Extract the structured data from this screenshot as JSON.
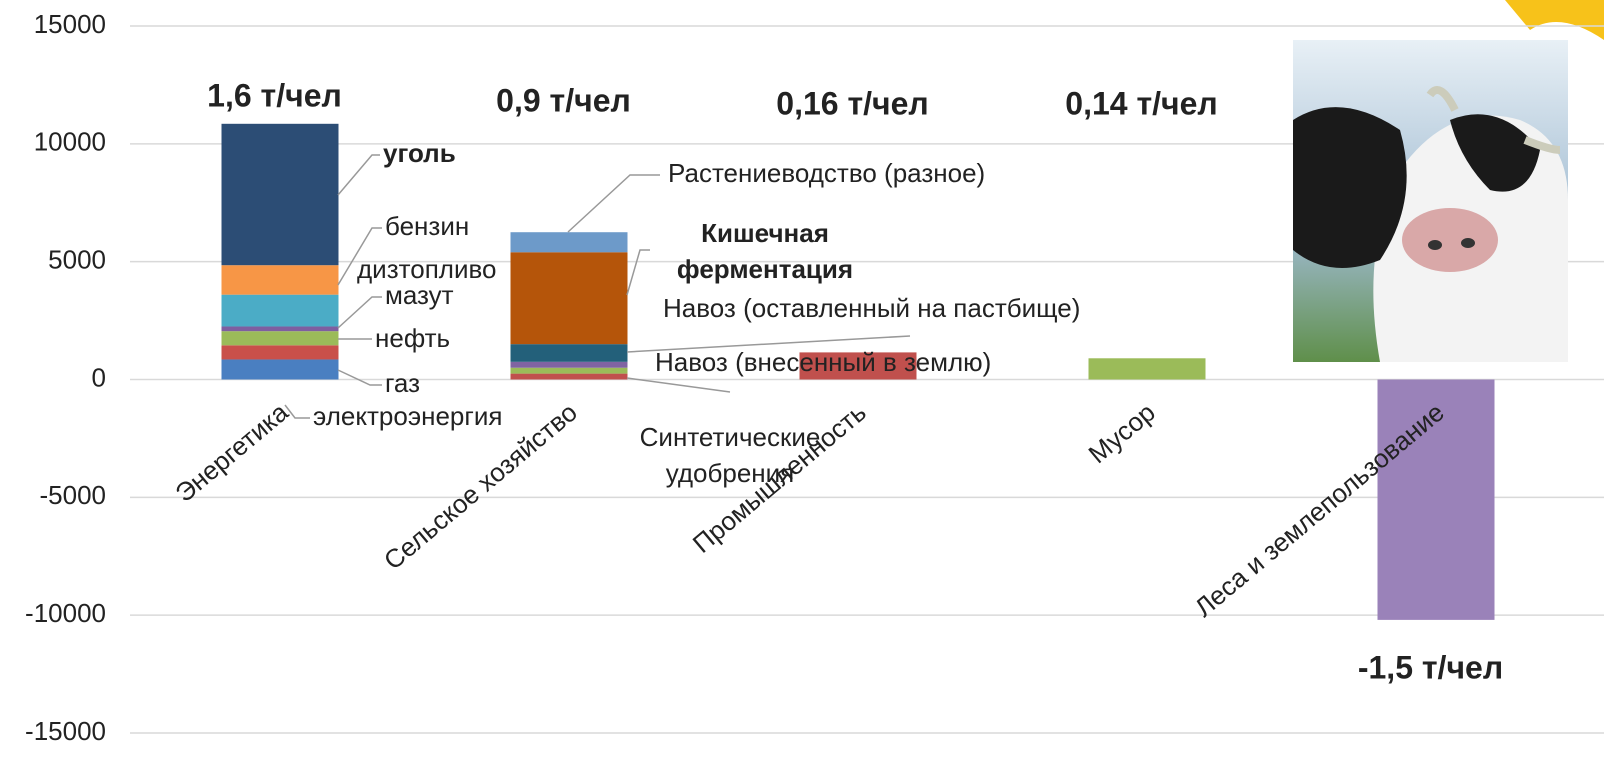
{
  "chart_data": {
    "type": "stacked-bar",
    "categories": [
      "Энергетика",
      "Сельское хозяйство",
      "Промышленность",
      "Мусор",
      "Леса и землепользование"
    ],
    "annotations": [
      "1,6 т/чел",
      "0,9 т/чел",
      "0,16 т/чел",
      "0,14 т/чел",
      "-1,5 т/чел"
    ],
    "series": [
      {
        "name": "электроэнергия",
        "color": "#4a7fc1",
        "values": [
          850,
          null,
          null,
          null,
          null
        ]
      },
      {
        "name": "газ",
        "color": "#c9504a",
        "values": [
          600,
          null,
          null,
          null,
          null
        ]
      },
      {
        "name": "нефть",
        "color": "#9bbb59",
        "values": [
          600,
          null,
          null,
          null,
          null
        ]
      },
      {
        "name": "мазут",
        "color": "#7e5fa0",
        "values": [
          200,
          null,
          null,
          null,
          null
        ]
      },
      {
        "name": "дизтопливо",
        "color": "#4bacc6",
        "values": [
          1350,
          null,
          null,
          null,
          null
        ]
      },
      {
        "name": "бензин",
        "color": "#f79646",
        "values": [
          1250,
          null,
          null,
          null,
          null
        ]
      },
      {
        "name": "уголь",
        "color": "#2c4d75",
        "values": [
          6000,
          null,
          null,
          null,
          null
        ]
      },
      {
        "name": "Синтетические удобрения",
        "color": "#c0504d",
        "values": [
          null,
          250,
          null,
          null,
          null
        ]
      },
      {
        "color": "#9bbb59",
        "values": [
          null,
          250,
          null,
          null,
          null
        ]
      },
      {
        "name": "Навоз (внесенный в землю)",
        "color": "#8064a2",
        "values": [
          null,
          250,
          null,
          null,
          null
        ]
      },
      {
        "name": "Навоз (оставленный на пастбище)",
        "color": "#23607a",
        "values": [
          null,
          750,
          null,
          null,
          null
        ]
      },
      {
        "name": "Кишечная ферментация",
        "color": "#b5550a",
        "values": [
          null,
          3900,
          null,
          null,
          null
        ]
      },
      {
        "name": "Растениеводство (разное)",
        "color": "#6d9ac9",
        "values": [
          null,
          850,
          null,
          null,
          null
        ]
      },
      {
        "color": "#c0504d",
        "values": [
          null,
          null,
          1150,
          null,
          null
        ]
      },
      {
        "color": "#9bbb59",
        "values": [
          null,
          null,
          null,
          900,
          null
        ]
      },
      {
        "color": "#9a82b9",
        "values": [
          null,
          null,
          null,
          null,
          -10200
        ]
      }
    ],
    "ylim": [
      -15000,
      15000
    ],
    "yticks": [
      -15000,
      -10000,
      -5000,
      0,
      5000,
      10000,
      15000
    ],
    "grid": true
  }
}
